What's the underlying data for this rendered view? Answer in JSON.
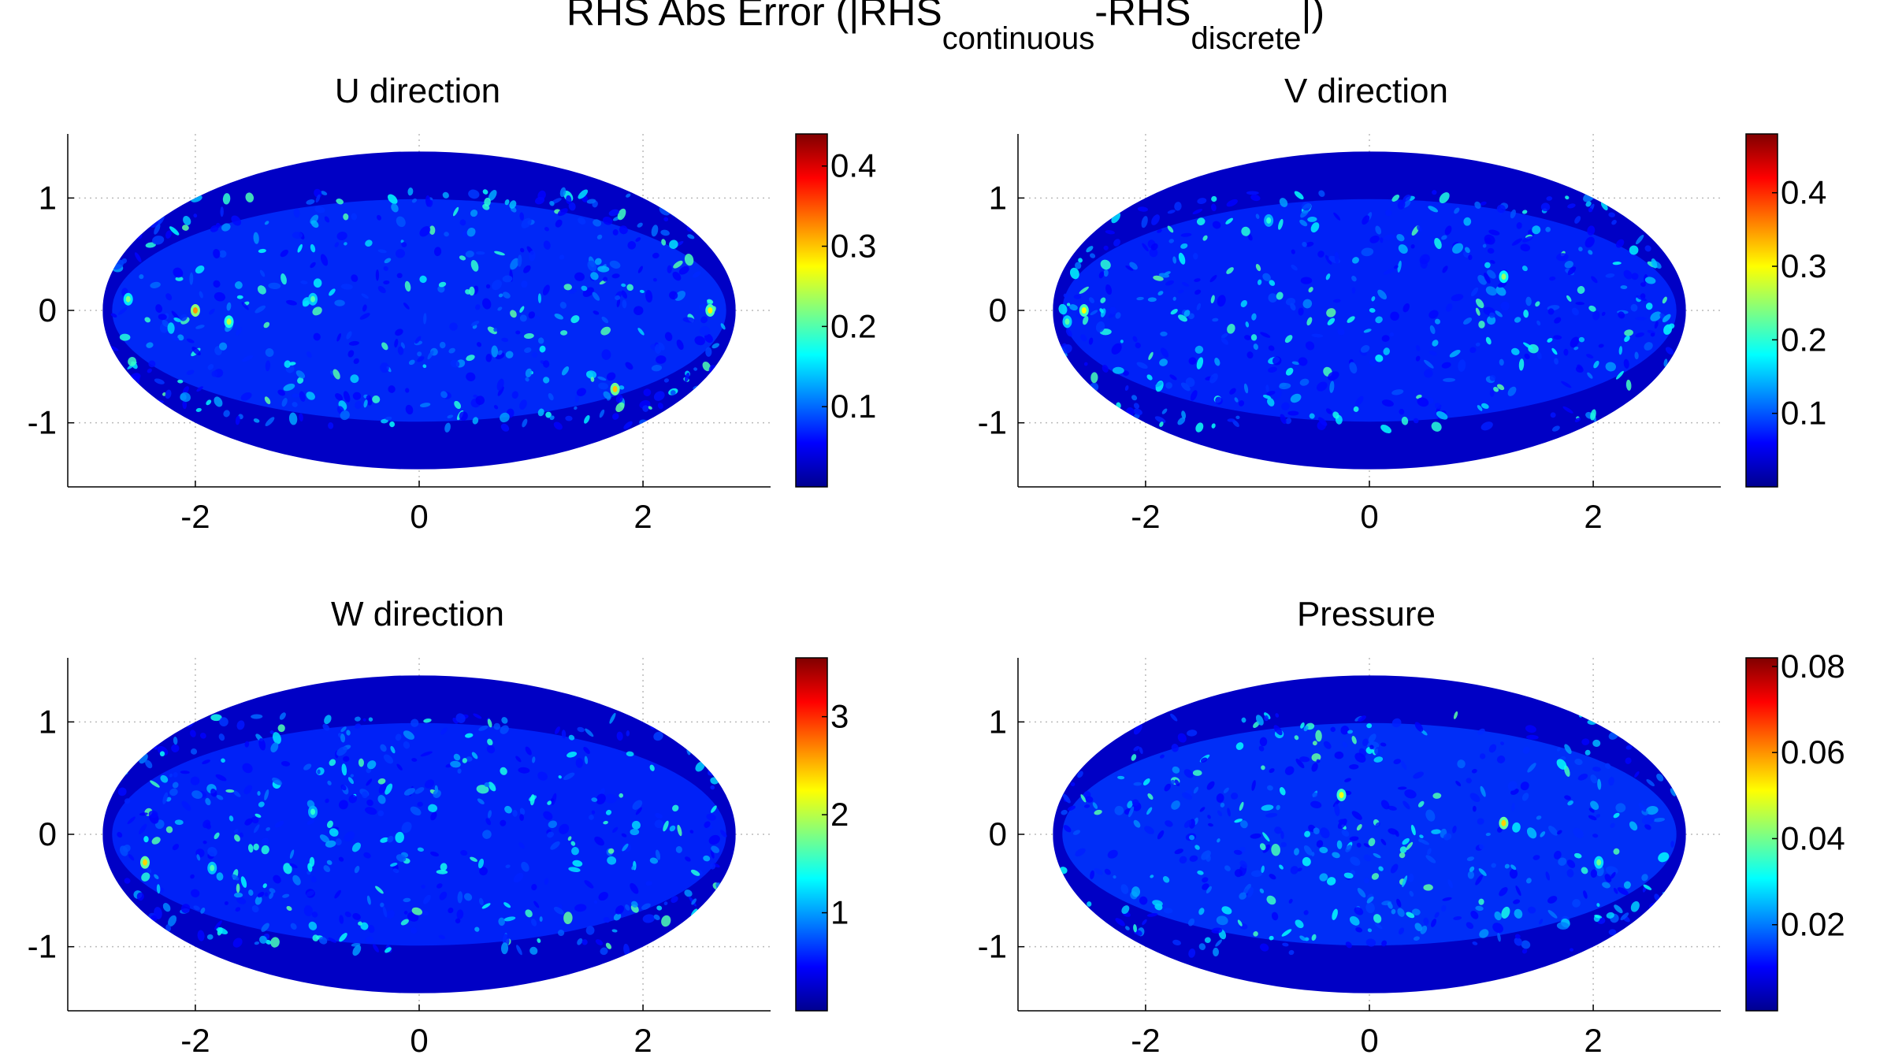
{
  "title": {
    "main": "RHS Abs Error (|RHS",
    "sub1": "continuous",
    "mid": "-RHS",
    "sub2": "discrete",
    "end": "|)"
  },
  "colormap": [
    "#00008f",
    "#0000ff",
    "#0080ff",
    "#00ffff",
    "#80ff80",
    "#ffff00",
    "#ff8000",
    "#ff0000",
    "#800000"
  ],
  "chart_data": [
    {
      "type": "heatmap",
      "title": "U direction",
      "projection": "mollweide",
      "xlim": [
        -3.14,
        3.14
      ],
      "ylim": [
        -1.57,
        1.57
      ],
      "xticks": [
        -2,
        0,
        2
      ],
      "xtick_labels": [
        "-2",
        "0",
        "2"
      ],
      "yticks": [
        -1,
        0,
        1
      ],
      "ytick_labels": [
        "-1",
        "0",
        "1"
      ],
      "grid": true,
      "colorbar": {
        "range": [
          0,
          0.44
        ],
        "ticks": [
          0.1,
          0.2,
          0.3,
          0.4
        ],
        "tick_labels": [
          "0.1",
          "0.2",
          "0.3",
          "0.4"
        ]
      },
      "background_error": 0.04,
      "hotspots": [
        {
          "x": -2.0,
          "y": 0.0,
          "value": 0.32
        },
        {
          "x": 2.6,
          "y": 0.0,
          "value": 0.28
        },
        {
          "x": 1.75,
          "y": -0.7,
          "value": 0.3
        },
        {
          "x": -1.7,
          "y": -0.1,
          "value": 0.25
        },
        {
          "x": -2.6,
          "y": 0.1,
          "value": 0.22
        },
        {
          "x": -0.95,
          "y": 0.1,
          "value": 0.2
        }
      ]
    },
    {
      "type": "heatmap",
      "title": "V direction",
      "projection": "mollweide",
      "xlim": [
        -3.14,
        3.14
      ],
      "ylim": [
        -1.57,
        1.57
      ],
      "xticks": [
        -2,
        0,
        2
      ],
      "xtick_labels": [
        "-2",
        "0",
        "2"
      ],
      "yticks": [
        -1,
        0,
        1
      ],
      "ytick_labels": [
        "-1",
        "0",
        "1"
      ],
      "grid": true,
      "colorbar": {
        "range": [
          0,
          0.48
        ],
        "ticks": [
          0.1,
          0.2,
          0.3,
          0.4
        ],
        "tick_labels": [
          "0.1",
          "0.2",
          "0.3",
          "0.4"
        ]
      },
      "background_error": 0.04,
      "hotspots": [
        {
          "x": -2.55,
          "y": 0.0,
          "value": 0.3
        },
        {
          "x": 1.2,
          "y": 0.3,
          "value": 0.25
        },
        {
          "x": -0.9,
          "y": 0.8,
          "value": 0.2
        },
        {
          "x": -2.7,
          "y": -0.1,
          "value": 0.22
        }
      ]
    },
    {
      "type": "heatmap",
      "title": "W direction",
      "projection": "mollweide",
      "xlim": [
        -3.14,
        3.14
      ],
      "ylim": [
        -1.57,
        1.57
      ],
      "xticks": [
        -2,
        0,
        2
      ],
      "xtick_labels": [
        "-2",
        "0",
        "2"
      ],
      "yticks": [
        -1,
        0,
        1
      ],
      "ytick_labels": [
        "-1",
        "0",
        "1"
      ],
      "grid": true,
      "colorbar": {
        "range": [
          0,
          3.6
        ],
        "ticks": [
          1,
          2,
          3
        ],
        "tick_labels": [
          "1",
          "2",
          "3"
        ]
      },
      "background_error": 0.3,
      "hotspots": [
        {
          "x": -2.45,
          "y": -0.25,
          "value": 2.4
        },
        {
          "x": -1.85,
          "y": -0.3,
          "value": 1.6
        },
        {
          "x": -0.95,
          "y": 0.2,
          "value": 1.5
        }
      ]
    },
    {
      "type": "heatmap",
      "title": "Pressure",
      "projection": "mollweide",
      "xlim": [
        -3.14,
        3.14
      ],
      "ylim": [
        -1.57,
        1.57
      ],
      "xticks": [
        -2,
        0,
        2
      ],
      "xtick_labels": [
        "-2",
        "0",
        "2"
      ],
      "yticks": [
        -1,
        0,
        1
      ],
      "ytick_labels": [
        "-1",
        "0",
        "1"
      ],
      "grid": true,
      "colorbar": {
        "range": [
          0,
          0.082
        ],
        "ticks": [
          0.02,
          0.04,
          0.06,
          0.08
        ],
        "tick_labels": [
          "0.02",
          "0.04",
          "0.06",
          "0.08"
        ]
      },
      "background_error": 0.008,
      "hotspots": [
        {
          "x": -0.25,
          "y": 0.35,
          "value": 0.05
        },
        {
          "x": 1.2,
          "y": 0.1,
          "value": 0.055
        },
        {
          "x": 2.05,
          "y": -0.25,
          "value": 0.04
        }
      ]
    }
  ]
}
